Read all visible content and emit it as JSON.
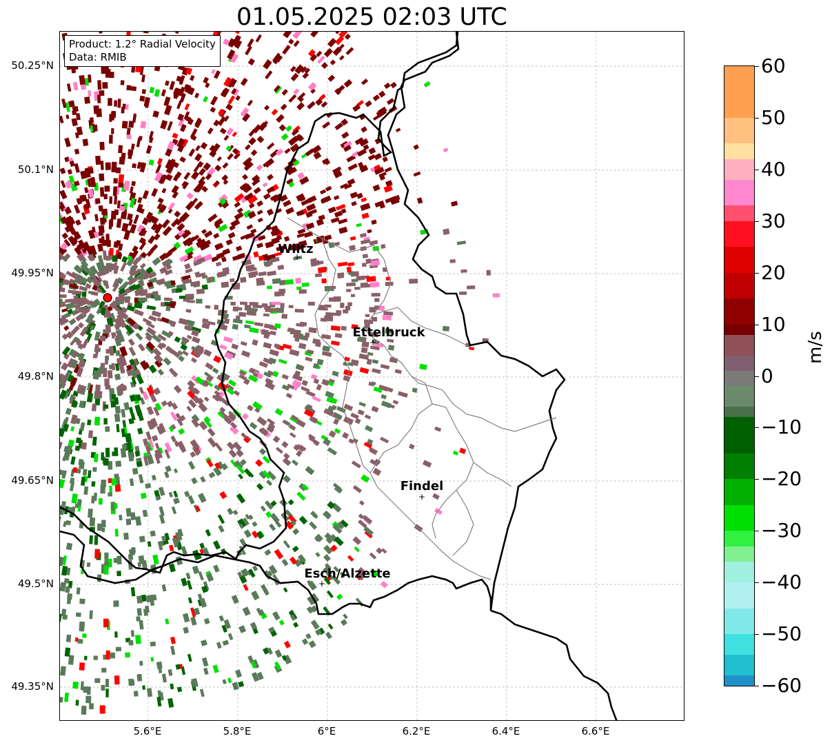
{
  "title": "01.05.2025 02:03 UTC",
  "info": {
    "product": "Product: 1.2° Radial Velocity",
    "source": "Data: RMIB"
  },
  "axes": {
    "lat_labels": [
      "50.25°N",
      "50.1°N",
      "49.95°N",
      "49.8°N",
      "49.65°N",
      "49.5°N",
      "49.35°N"
    ],
    "lon_labels": [
      "5.6°E",
      "5.8°E",
      "6°E",
      "6.2°E",
      "6.4°E",
      "6.6°E"
    ],
    "gridlines": true
  },
  "places": [
    {
      "name": "Wiltz"
    },
    {
      "name": "Ettelbruck"
    },
    {
      "name": "Findel"
    },
    {
      "name": "Esch/Alzette"
    }
  ],
  "radar_site_color": "#ff0000",
  "colorbar": {
    "unit": "m/s",
    "tick_labels": [
      "60",
      "50",
      "40",
      "30",
      "20",
      "10",
      "0",
      "−10",
      "−20",
      "−30",
      "−40",
      "−50",
      "−60"
    ],
    "range": [
      -60,
      60
    ],
    "colors": {
      "high": "#ffa050",
      "pink": "#ff80c8",
      "red": "#ff0000",
      "dark_red": "#7a0000",
      "brownish": "#8a6068",
      "grey_green": "#5a7a5a",
      "dark_green": "#006400",
      "green": "#00e000",
      "light_green": "#90f0a0",
      "cyan": "#40e0e0",
      "blue": "#2080c0"
    }
  }
}
